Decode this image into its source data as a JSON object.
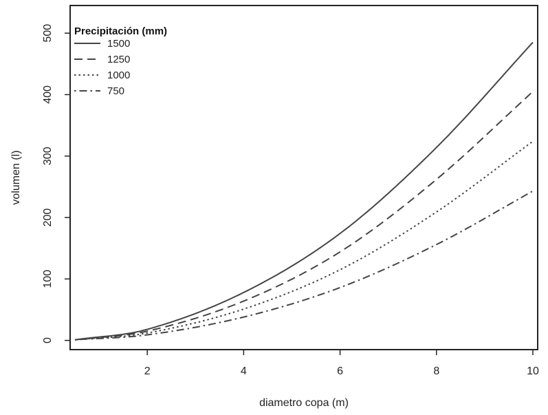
{
  "chart_data": {
    "type": "line",
    "xlabel": "diametro copa (m)",
    "ylabel": "volumen (l)",
    "xlim": [
      0.4,
      10.1
    ],
    "ylim": [
      -15,
      545
    ],
    "xticks": [
      "2",
      "4",
      "6",
      "8",
      "10"
    ],
    "yticks": [
      "0",
      "100",
      "200",
      "300",
      "400",
      "500"
    ],
    "grid": false,
    "legend": {
      "title": "Precipitación (mm)",
      "placement": "top-left"
    },
    "x": [
      0.5,
      2,
      4,
      6,
      8,
      10
    ],
    "series": [
      {
        "name": "1500",
        "line_style": "solid",
        "values": [
          1,
          18,
          78,
          174,
          314,
          485
        ]
      },
      {
        "name": "1250",
        "line_style": "dashed",
        "values": [
          1,
          15,
          64,
          144,
          262,
          405
        ]
      },
      {
        "name": "1000",
        "line_style": "dotted",
        "values": [
          1,
          12,
          51,
          115,
          209,
          324
        ]
      },
      {
        "name": "750",
        "line_style": "dotdash",
        "values": [
          1,
          9,
          38,
          86,
          156,
          243
        ]
      }
    ]
  }
}
